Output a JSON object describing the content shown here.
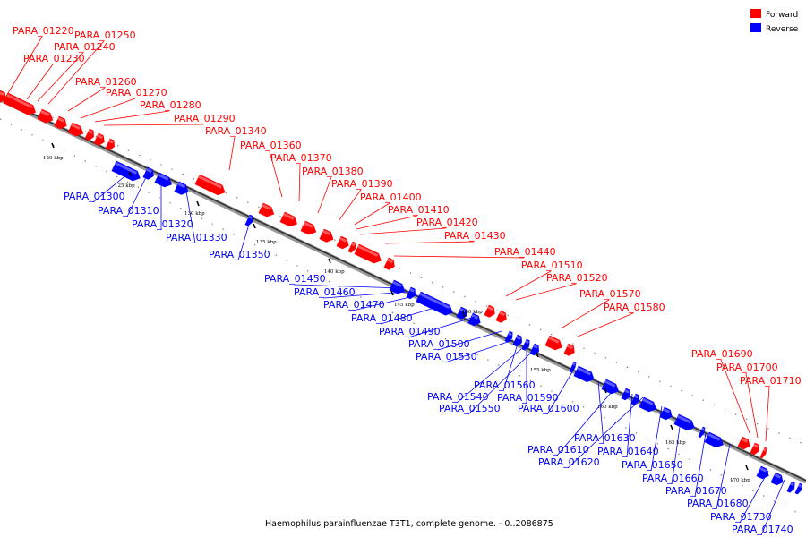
{
  "legend": {
    "forward_label": "Forward",
    "reverse_label": "Reverse",
    "forward_color": "#ff0000",
    "reverse_color": "#0000ff"
  },
  "caption": "Haemophilus parainfluenzae T3T1, complete genome. - 0..2086875",
  "ticks": [
    "120 kbp",
    "125 kbp",
    "130 kbp",
    "135 kbp",
    "140 kbp",
    "145 kbp",
    "150 kbp",
    "155 kbp",
    "160 kbp",
    "165 kbp",
    "170 kbp"
  ],
  "forward_genes": [
    "PARA_01220",
    "PARA_01250",
    "PARA_01240",
    "PARA_01230",
    "PARA_01260",
    "PARA_01270",
    "PARA_01280",
    "PARA_01290",
    "PARA_01340",
    "PARA_01360",
    "PARA_01370",
    "PARA_01380",
    "PARA_01390",
    "PARA_01400",
    "PARA_01410",
    "PARA_01420",
    "PARA_01430",
    "PARA_01440",
    "PARA_01510",
    "PARA_01520",
    "PARA_01570",
    "PARA_01580",
    "PARA_01690",
    "PARA_01700",
    "PARA_01710"
  ],
  "reverse_genes": [
    "PARA_01300",
    "PARA_01310",
    "PARA_01320",
    "PARA_01330",
    "PARA_01350",
    "PARA_01450",
    "PARA_01460",
    "PARA_01470",
    "PARA_01480",
    "PARA_01490",
    "PARA_01500",
    "PARA_01530",
    "PARA_01560",
    "PARA_01540",
    "PARA_01590",
    "PARA_01550",
    "PARA_01600",
    "PARA_01630",
    "PARA_01610",
    "PARA_01640",
    "PARA_01620",
    "PARA_01650",
    "PARA_01660",
    "PARA_01670",
    "PARA_01680",
    "PARA_01730",
    "PARA_01740"
  ]
}
